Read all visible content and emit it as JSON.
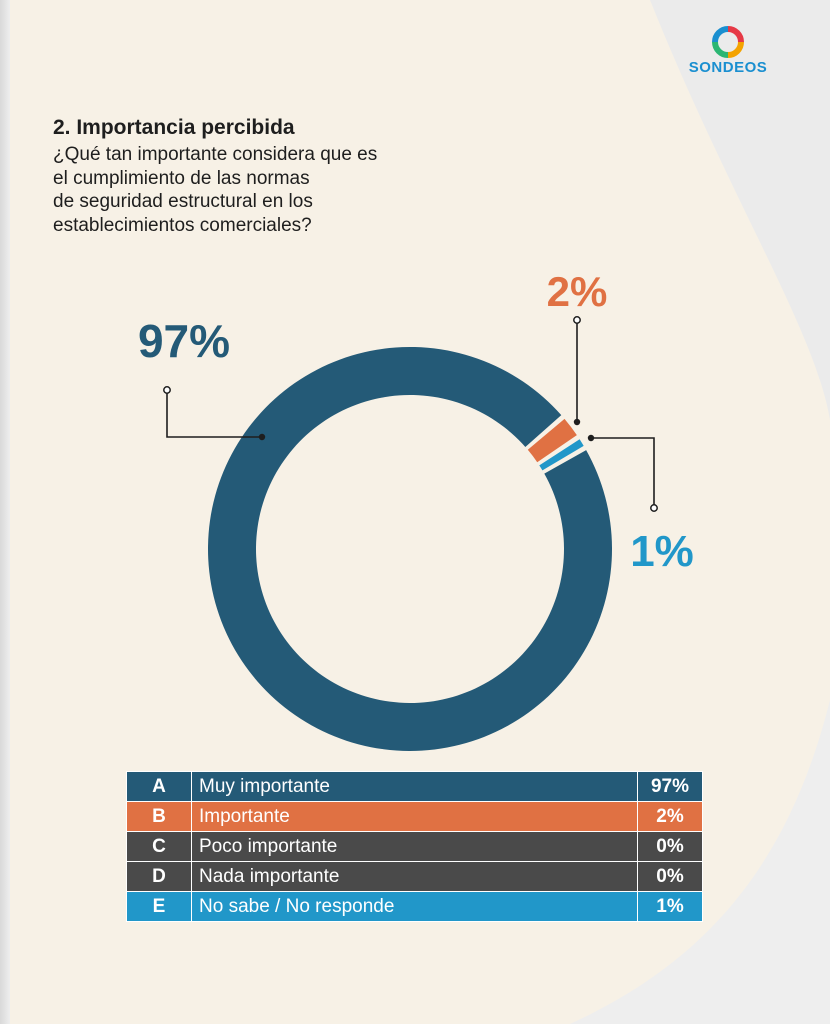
{
  "brand": {
    "name": "SONDEOS"
  },
  "colors": {
    "muy_importante": "#245a77",
    "importante": "#e07143",
    "poco_importante": "#4a4a4a",
    "nada_importante": "#4a4a4a",
    "no_sabe": "#2197c9"
  },
  "question": {
    "title": "2. Importancia percibida",
    "lines": [
      "¿Qué tan importante considera que es",
      "el cumplimiento de las normas",
      "de seguridad estructural en los",
      "establecimientos comerciales?"
    ]
  },
  "chart_data": {
    "type": "pie",
    "style": "donut",
    "title": "2. Importancia percibida",
    "slices": [
      {
        "label": "Muy importante",
        "value": 97,
        "display": "97%",
        "color": "#245a77"
      },
      {
        "label": "Importante",
        "value": 2,
        "display": "2%",
        "color": "#e07143"
      },
      {
        "label": "No sabe / No responde",
        "value": 1,
        "display": "1%",
        "color": "#2197c9"
      }
    ]
  },
  "table": {
    "rows": [
      {
        "letter": "A",
        "label": "Muy importante",
        "pct": "97%",
        "color": "#245a77"
      },
      {
        "letter": "B",
        "label": "Importante",
        "pct": "2%",
        "color": "#e07143"
      },
      {
        "letter": "C",
        "label": "Poco importante",
        "pct": "0%",
        "color": "#4a4a4a"
      },
      {
        "letter": "D",
        "label": "Nada importante",
        "pct": "0%",
        "color": "#4a4a4a"
      },
      {
        "letter": "E",
        "label": "No sabe / No responde",
        "pct": "1%",
        "color": "#2197c9"
      }
    ]
  }
}
